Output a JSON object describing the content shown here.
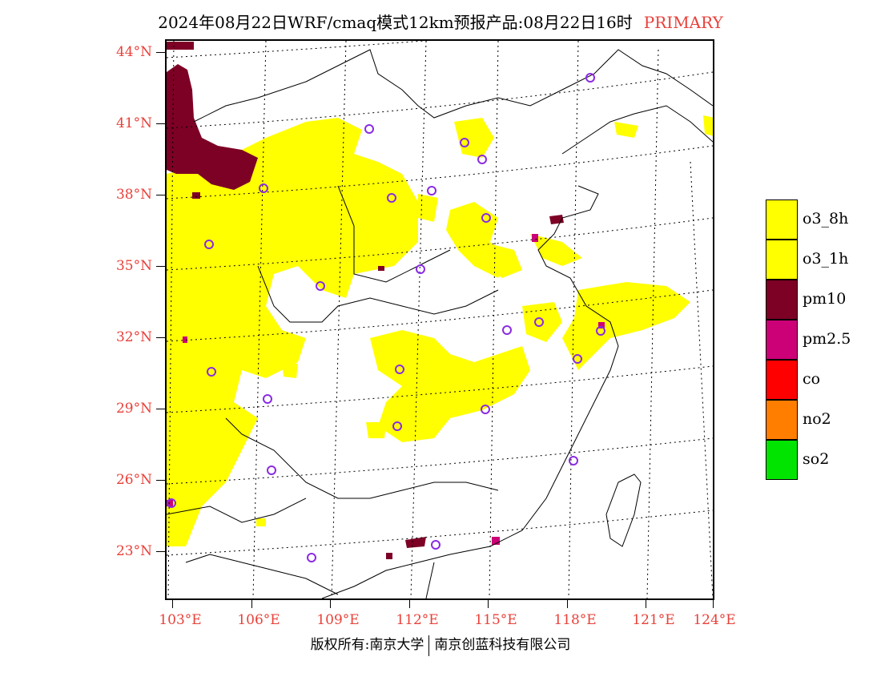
{
  "header": {
    "title": "2024年08月22日WRF/cmaq模式12km预报产品:08月22日16时",
    "mode": "PRIMARY"
  },
  "map": {
    "lat_labels": [
      "44°N",
      "41°N",
      "38°N",
      "35°N",
      "32°N",
      "29°N",
      "26°N",
      "23°N"
    ],
    "lon_labels": [
      "103°E",
      "106°E",
      "109°E",
      "112°E",
      "115°E",
      "118°E",
      "121°E",
      "124°E"
    ]
  },
  "legend": {
    "items": [
      {
        "label": "o3_8h",
        "color": "#ffff00"
      },
      {
        "label": "o3_1h",
        "color": "#ffff00"
      },
      {
        "label": "pm10",
        "color": "#7d0025"
      },
      {
        "label": "pm2.5",
        "color": "#cc0077"
      },
      {
        "label": "co",
        "color": "#ff0000"
      },
      {
        "label": "no2",
        "color": "#ff7e00"
      },
      {
        "label": "so2",
        "color": "#00e400"
      }
    ]
  },
  "footer": {
    "left": "版权所有:南京大学",
    "right": "南京创蓝科技有限公司"
  },
  "colors": {
    "o3": "#ffff00",
    "pm10": "#7d0025",
    "pm25": "#cc0077",
    "station_marker": "#8a2be2",
    "axis_label": "#e8413a"
  }
}
